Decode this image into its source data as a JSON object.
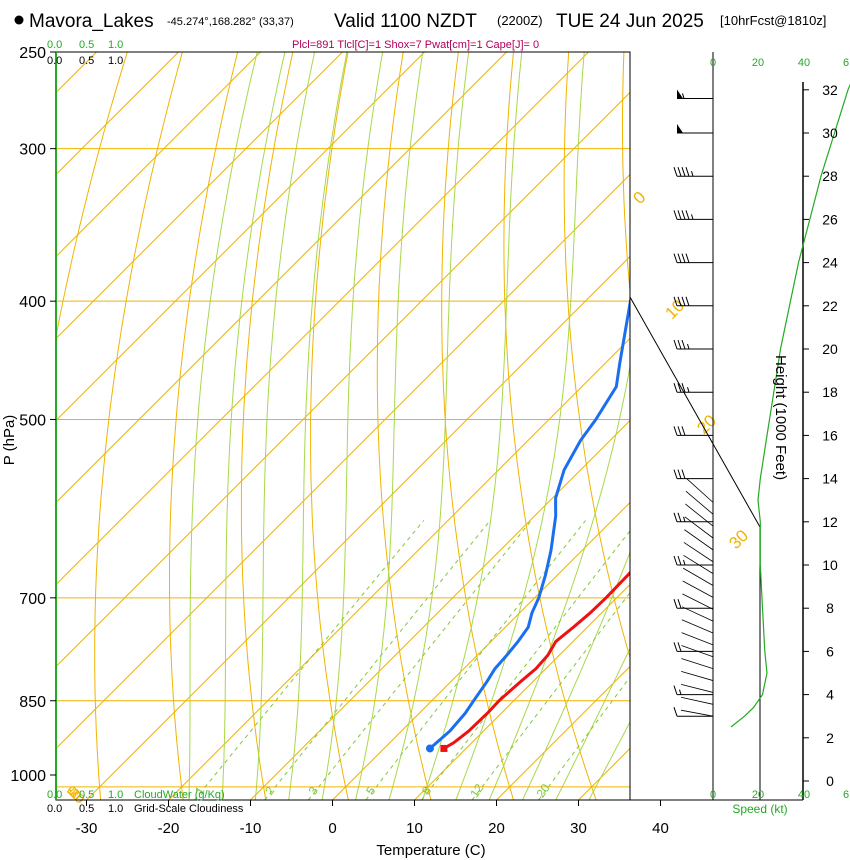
{
  "header": {
    "station": "Mavora_Lakes",
    "coords": "-45.274°,168.282° (33,37)",
    "valid_label": "Valid 1100 NZDT",
    "utc": "(2200Z)",
    "date": "TUE 24 Jun 2025",
    "forecast": "[10hrFcst@1810z]",
    "params": "Plcl=891 Tlcl[C]=1 Shox=7 Pwat[cm]=1 Cape[J]= 0"
  },
  "colors": {
    "temperature": "#ee1111",
    "dewpoint": "#1a6ef0",
    "isotherm": "#f0b400",
    "dry_adiabat": "#f0b400",
    "moist_adiabat": "#a8d84a",
    "mixing_ratio": "#80c838",
    "cloud": "#22aa22",
    "params_text": "#b0005a"
  },
  "scale_labels": {
    "cloud_top": [
      "0.0",
      "0.5",
      "1.0"
    ],
    "cloudiness_top": [
      "0.0",
      "0.5",
      "1.0"
    ],
    "cloud_bottom": [
      "0.0",
      "0.5",
      "1.0"
    ],
    "cloud_water_label": "CloudWater (g/Kg)",
    "cloudiness_bottom": [
      "0.0",
      "0.5",
      "1.0"
    ],
    "grid_cloudiness_label": "Grid-Scale Cloudiness",
    "speed_top": [
      "0",
      "20",
      "40",
      "6"
    ],
    "speed_bottom": [
      "0",
      "20",
      "40",
      "6"
    ],
    "speed_label": "Speed (kt)"
  },
  "chart_data": {
    "type": "line",
    "title": "Skew-T log-P sounding",
    "xlabel": "Temperature (C)",
    "ylabel": "P (hPa)",
    "xlim": [
      -34,
      36
    ],
    "ylim_hpa": [
      1000,
      250
    ],
    "temperature_ticks": [
      -30,
      -20,
      -10,
      0,
      10,
      20,
      30,
      40
    ],
    "pressure_ticks": [
      250,
      300,
      400,
      500,
      700,
      850,
      1000
    ],
    "isotherm_labels": [
      {
        "text": "10",
        "t": -10
      },
      {
        "text": "0",
        "t": 0
      },
      {
        "text": "-10",
        "t": 10
      },
      {
        "text": "-20",
        "t": 20
      },
      {
        "text": "-30",
        "t": 30
      }
    ],
    "dry_adiabat_labels": [
      "0",
      "10",
      "20",
      "30"
    ],
    "mixing_ratio_values": [
      1,
      2,
      3,
      5,
      8,
      12,
      20
    ],
    "series": [
      {
        "name": "Temperature",
        "points": [
          {
            "p": 930,
            "t": 7.3
          },
          {
            "p": 920,
            "t": 7.8
          },
          {
            "p": 900,
            "t": 8.2
          },
          {
            "p": 870,
            "t": 8.3
          },
          {
            "p": 850,
            "t": 8.2
          },
          {
            "p": 820,
            "t": 8.5
          },
          {
            "p": 800,
            "t": 8.8
          },
          {
            "p": 780,
            "t": 8.6
          },
          {
            "p": 760,
            "t": 7.9
          },
          {
            "p": 740,
            "t": 8.3
          },
          {
            "p": 720,
            "t": 8.6
          },
          {
            "p": 700,
            "t": 8.7
          },
          {
            "p": 670,
            "t": 8.6
          },
          {
            "p": 640,
            "t": 8.1
          },
          {
            "p": 600,
            "t": 6.0
          },
          {
            "p": 580,
            "t": 4.6
          },
          {
            "p": 550,
            "t": 2.1
          },
          {
            "p": 500,
            "t": -2.4
          },
          {
            "p": 450,
            "t": -7.0
          },
          {
            "p": 400,
            "t": -12.6
          },
          {
            "p": 350,
            "t": -19.0
          },
          {
            "p": 300,
            "t": -26.8
          },
          {
            "p": 275,
            "t": -31.5
          },
          {
            "p": 265,
            "t": -33.6
          }
        ]
      },
      {
        "name": "Dewpoint",
        "points": [
          {
            "p": 930,
            "t": 5.6
          },
          {
            "p": 920,
            "t": 5.7
          },
          {
            "p": 900,
            "t": 5.9
          },
          {
            "p": 870,
            "t": 5.6
          },
          {
            "p": 850,
            "t": 5.1
          },
          {
            "p": 820,
            "t": 4.4
          },
          {
            "p": 800,
            "t": 3.8
          },
          {
            "p": 780,
            "t": 3.6
          },
          {
            "p": 760,
            "t": 3.3
          },
          {
            "p": 740,
            "t": 2.8
          },
          {
            "p": 720,
            "t": 1.5
          },
          {
            "p": 700,
            "t": 0.5
          },
          {
            "p": 670,
            "t": -1.5
          },
          {
            "p": 640,
            "t": -3.8
          },
          {
            "p": 600,
            "t": -7.4
          },
          {
            "p": 580,
            "t": -9.6
          },
          {
            "p": 550,
            "t": -12.0
          },
          {
            "p": 520,
            "t": -13.6
          },
          {
            "p": 500,
            "t": -14.3
          },
          {
            "p": 470,
            "t": -15.8
          },
          {
            "p": 450,
            "t": -18.2
          },
          {
            "p": 400,
            "t": -24.5
          },
          {
            "p": 350,
            "t": -31.2
          },
          {
            "p": 300,
            "t": -38.8
          },
          {
            "p": 265,
            "t": -44.5
          }
        ]
      }
    ]
  },
  "height_axis": {
    "label": "Height (1000 Feet)",
    "ticks": [
      0,
      2,
      4,
      6,
      8,
      10,
      12,
      14,
      16,
      18,
      20,
      22,
      24,
      26,
      28,
      30,
      32
    ]
  },
  "wind": {
    "barbs": [
      {
        "h": 31.6,
        "kt": 55
      },
      {
        "h": 30.0,
        "kt": 52
      },
      {
        "h": 28.0,
        "kt": 48
      },
      {
        "h": 26.0,
        "kt": 45
      },
      {
        "h": 24.0,
        "kt": 42
      },
      {
        "h": 22.0,
        "kt": 40
      },
      {
        "h": 20.0,
        "kt": 38
      },
      {
        "h": 18.0,
        "kt": 36
      },
      {
        "h": 16.0,
        "kt": 33
      },
      {
        "h": 14.0,
        "kt": 30
      },
      {
        "h": 12.0,
        "kt": 28
      },
      {
        "h": 10.0,
        "kt": 26
      },
      {
        "h": 8.0,
        "kt": 24
      },
      {
        "h": 6.0,
        "kt": 22
      },
      {
        "h": 4.0,
        "kt": 18
      },
      {
        "h": 3.0,
        "kt": 12
      }
    ],
    "speed_profile": [
      {
        "h": 2.5,
        "kt": 8
      },
      {
        "h": 3.0,
        "kt": 14
      },
      {
        "h": 3.4,
        "kt": 18
      },
      {
        "h": 4.0,
        "kt": 22
      },
      {
        "h": 5.0,
        "kt": 24
      },
      {
        "h": 6.0,
        "kt": 23
      },
      {
        "h": 8.0,
        "kt": 22
      },
      {
        "h": 10.0,
        "kt": 21
      },
      {
        "h": 12.0,
        "kt": 21
      },
      {
        "h": 13.0,
        "kt": 20
      },
      {
        "h": 14.0,
        "kt": 21
      },
      {
        "h": 16.0,
        "kt": 24
      },
      {
        "h": 18.0,
        "kt": 27
      },
      {
        "h": 20.0,
        "kt": 30
      },
      {
        "h": 22.0,
        "kt": 34
      },
      {
        "h": 24.0,
        "kt": 38
      },
      {
        "h": 26.0,
        "kt": 43
      },
      {
        "h": 28.0,
        "kt": 48
      },
      {
        "h": 30.0,
        "kt": 54
      },
      {
        "h": 32.0,
        "kt": 60
      },
      {
        "h": 33.0,
        "kt": 64
      }
    ]
  }
}
